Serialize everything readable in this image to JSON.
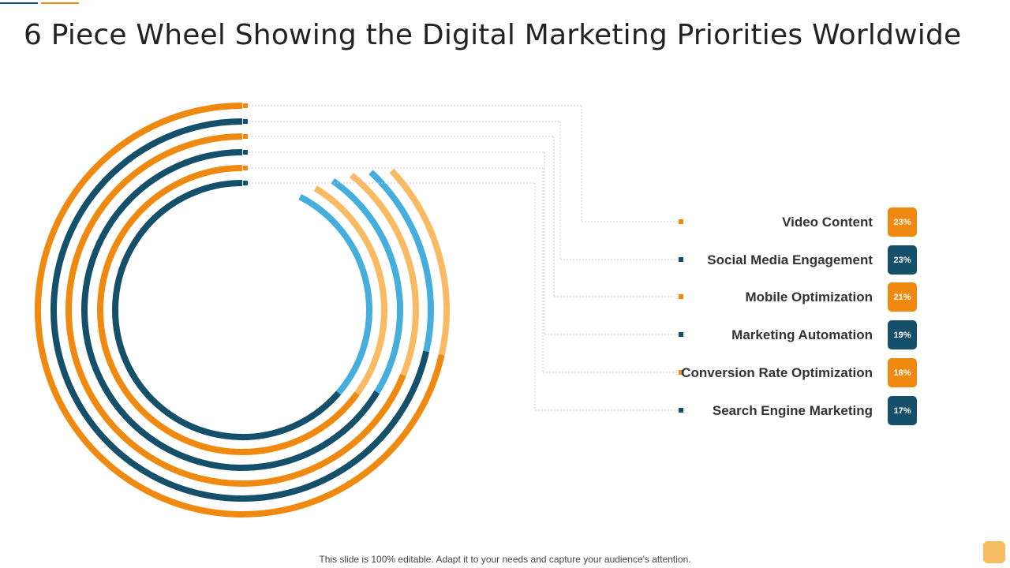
{
  "colors": {
    "dark_orange": "#F0890F",
    "dark_teal": "#14506A",
    "light_orange": "#F9BA64",
    "light_blue": "#46AEDC",
    "leader_line": "#C8C8C8"
  },
  "title": "6 Piece Wheel Showing the Digital Marketing Priorities Worldwide",
  "chart_data": {
    "type": "radial-bar",
    "series": [
      {
        "label": "Video Content",
        "percent_label": "23%",
        "value": 23,
        "color": "#F0890F"
      },
      {
        "label": "Social Media Engagement",
        "percent_label": "23%",
        "value": 23,
        "color": "#14506A"
      },
      {
        "label": "Mobile Optimization",
        "percent_label": "21%",
        "value": 21,
        "color": "#F0890F"
      },
      {
        "label": "Marketing Automation",
        "percent_label": "19%",
        "value": 19,
        "color": "#14506A"
      },
      {
        "label": "Conversion Rate Optimization",
        "percent_label": "18%",
        "value": 18,
        "color": "#F0890F"
      },
      {
        "label": "Search Engine Marketing",
        "percent_label": "17%",
        "value": 17,
        "color": "#14506A"
      }
    ]
  },
  "footer": "This slide is 100% editable. Adapt it to your needs and capture your audience's attention."
}
